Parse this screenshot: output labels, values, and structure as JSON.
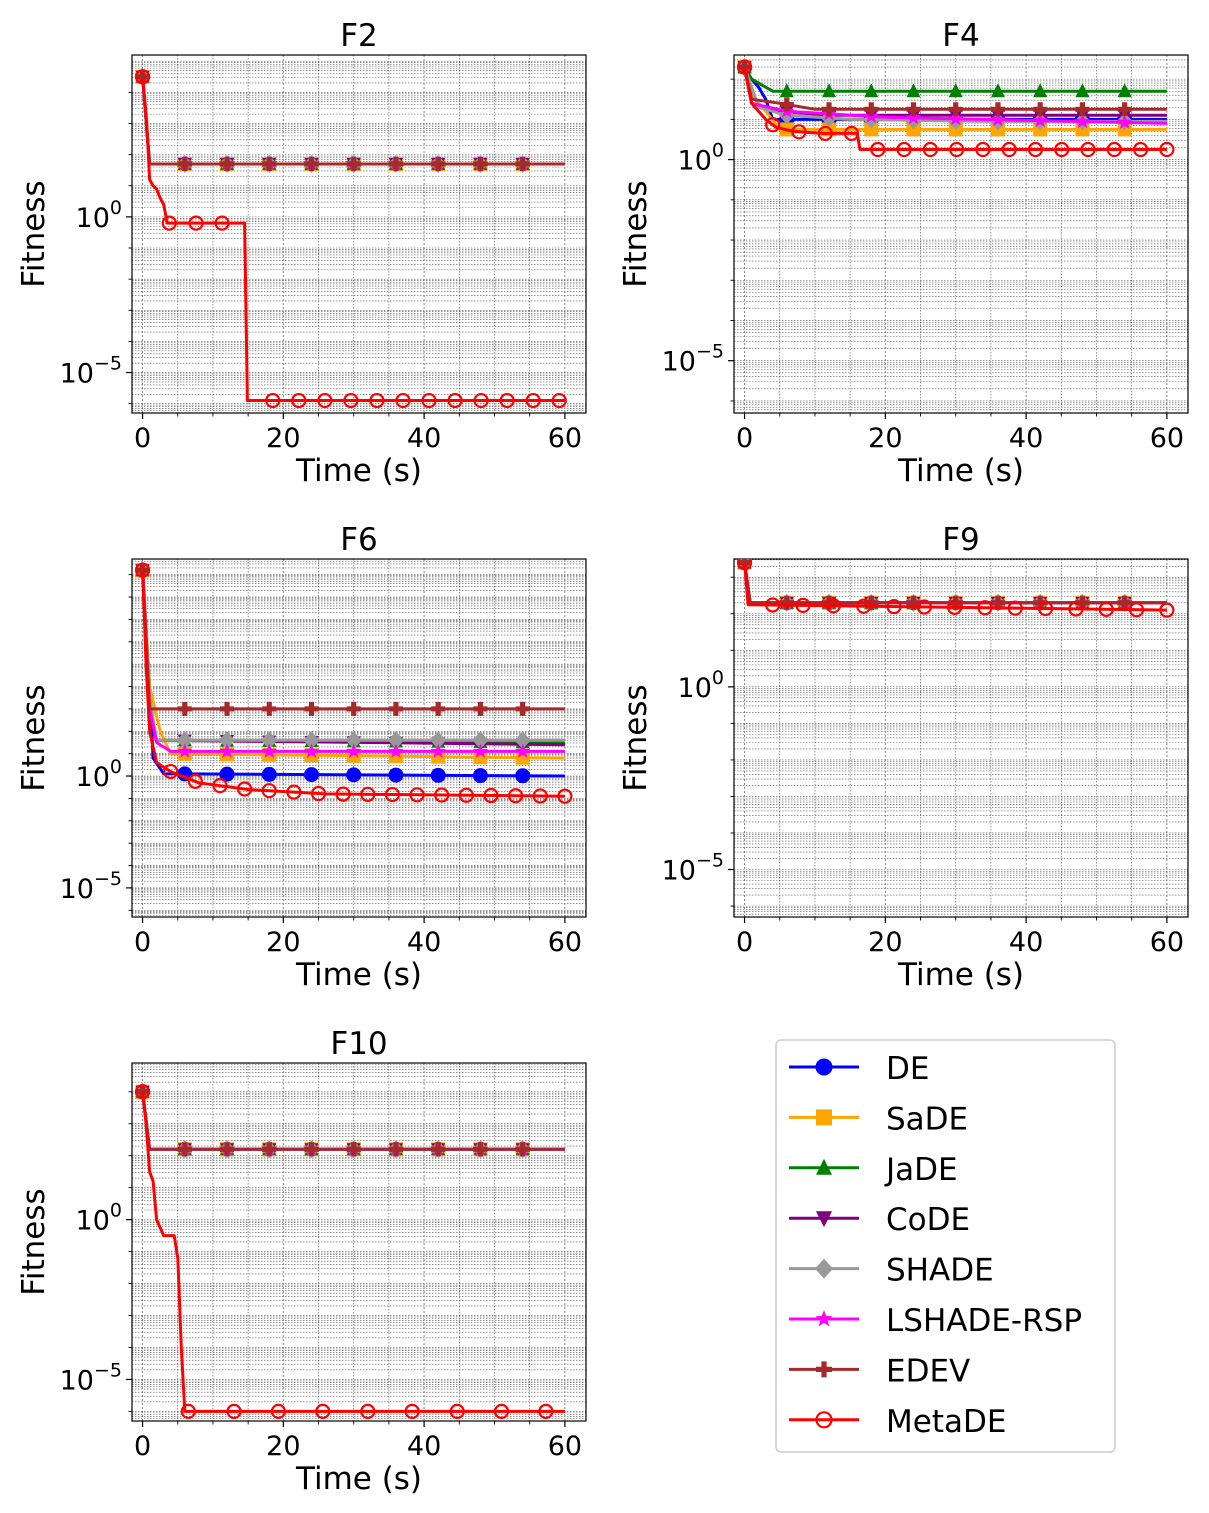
{
  "chart_data": [
    {
      "type": "line",
      "title": "F2",
      "xlabel": "Time (s)",
      "ylabel": "Fitness",
      "xlim": [
        -1.5,
        63
      ],
      "ylim_log10": [
        -6.3,
        5.2
      ],
      "xticks": [
        "0",
        "20",
        "40",
        "60"
      ],
      "yticks": [
        {
          "base": "10",
          "exp": "0",
          "v": 0
        },
        {
          "base": "10",
          "exp": "−5",
          "v": -5
        }
      ],
      "grid": true,
      "series": [
        {
          "name": "DE",
          "x": [
            0,
            1,
            60
          ],
          "log10y": [
            4.5,
            1.7,
            1.7
          ]
        },
        {
          "name": "SaDE",
          "x": [
            0,
            1,
            60
          ],
          "log10y": [
            4.5,
            1.7,
            1.7
          ]
        },
        {
          "name": "JaDE",
          "x": [
            0,
            1,
            60
          ],
          "log10y": [
            4.5,
            1.7,
            1.7
          ]
        },
        {
          "name": "CoDE",
          "x": [
            0,
            1,
            60
          ],
          "log10y": [
            4.5,
            1.7,
            1.7
          ]
        },
        {
          "name": "SHADE",
          "x": [
            0,
            1,
            60
          ],
          "log10y": [
            4.5,
            1.7,
            1.7
          ]
        },
        {
          "name": "LSHADE-RSP",
          "x": [
            0,
            1,
            60
          ],
          "log10y": [
            4.5,
            1.7,
            1.7
          ]
        },
        {
          "name": "EDEV",
          "x": [
            0,
            1,
            60
          ],
          "log10y": [
            4.5,
            1.7,
            1.7
          ]
        },
        {
          "name": "MetaDE",
          "x": [
            0,
            0.3,
            0.6,
            1.0,
            1.5,
            2.0,
            2.5,
            3.0,
            3.5,
            14.5,
            14.9,
            60
          ],
          "log10y": [
            4.5,
            3.8,
            3.0,
            1.2,
            1.0,
            0.9,
            0.6,
            0.4,
            -0.2,
            -0.2,
            -5.9,
            -5.9
          ]
        }
      ]
    },
    {
      "type": "line",
      "title": "F4",
      "xlabel": "Time (s)",
      "ylabel": "Fitness",
      "xlim": [
        -1.5,
        63
      ],
      "ylim_log10": [
        -6.3,
        2.6
      ],
      "xticks": [
        "0",
        "20",
        "40",
        "60"
      ],
      "yticks": [
        {
          "base": "10",
          "exp": "0",
          "v": 0
        },
        {
          "base": "10",
          "exp": "−5",
          "v": -5
        }
      ],
      "grid": true,
      "series": [
        {
          "name": "DE",
          "x": [
            0,
            1,
            2,
            3,
            4,
            60
          ],
          "log10y": [
            2.3,
            2.0,
            1.8,
            1.5,
            1.0,
            1.0
          ]
        },
        {
          "name": "SaDE",
          "x": [
            0,
            1,
            3,
            5,
            60
          ],
          "log10y": [
            2.3,
            1.6,
            1.2,
            0.75,
            0.75
          ]
        },
        {
          "name": "JaDE",
          "x": [
            0,
            1,
            4,
            60
          ],
          "log10y": [
            2.3,
            2.0,
            1.7,
            1.7
          ]
        },
        {
          "name": "CoDE",
          "x": [
            0,
            1,
            5,
            12,
            60
          ],
          "log10y": [
            2.3,
            1.4,
            1.2,
            1.1,
            1.1
          ]
        },
        {
          "name": "SHADE",
          "x": [
            0,
            2,
            6,
            15,
            35,
            60
          ],
          "log10y": [
            2.3,
            1.3,
            1.1,
            1.0,
            0.95,
            0.95
          ]
        },
        {
          "name": "LSHADE-RSP",
          "x": [
            0,
            1,
            6,
            20,
            60
          ],
          "log10y": [
            2.3,
            1.4,
            1.2,
            1.05,
            0.9
          ]
        },
        {
          "name": "EDEV",
          "x": [
            0,
            1,
            5,
            10,
            60
          ],
          "log10y": [
            2.3,
            1.5,
            1.4,
            1.25,
            1.25
          ]
        },
        {
          "name": "MetaDE",
          "x": [
            0,
            0.3,
            1.0,
            3.0,
            4.5,
            7.0,
            11.0,
            16.0,
            16.4,
            60
          ],
          "log10y": [
            2.3,
            2.0,
            1.4,
            1.0,
            0.8,
            0.7,
            0.65,
            0.65,
            0.25,
            0.25
          ]
        }
      ]
    },
    {
      "type": "line",
      "title": "F6",
      "xlabel": "Time (s)",
      "ylabel": "Fitness",
      "xlim": [
        -1.5,
        63
      ],
      "ylim_log10": [
        -6.3,
        9.7
      ],
      "xticks": [
        "0",
        "20",
        "40",
        "60"
      ],
      "yticks": [
        {
          "base": "10",
          "exp": "0",
          "v": 0
        },
        {
          "base": "10",
          "exp": "−5",
          "v": -5
        }
      ],
      "grid": true,
      "series": [
        {
          "name": "DE",
          "x": [
            0,
            1.0,
            1.5,
            3.0,
            60
          ],
          "log10y": [
            9.2,
            4.0,
            0.8,
            0.1,
            0.0
          ]
        },
        {
          "name": "SaDE",
          "x": [
            0,
            1.0,
            2.5,
            4.0,
            60
          ],
          "log10y": [
            9.2,
            4.0,
            2.0,
            1.0,
            0.8
          ]
        },
        {
          "name": "JaDE",
          "x": [
            0,
            1.0,
            2.0,
            60
          ],
          "log10y": [
            9.2,
            3.0,
            1.6,
            1.5
          ]
        },
        {
          "name": "CoDE",
          "x": [
            0,
            1.0,
            2.0,
            60
          ],
          "log10y": [
            9.2,
            3.0,
            1.6,
            1.4
          ]
        },
        {
          "name": "SHADE",
          "x": [
            0,
            1.0,
            2.0,
            60
          ],
          "log10y": [
            9.2,
            3.5,
            1.6,
            1.6
          ]
        },
        {
          "name": "LSHADE-RSP",
          "x": [
            0,
            1.0,
            2.0,
            4.0,
            60
          ],
          "log10y": [
            9.2,
            3.0,
            1.5,
            1.1,
            1.1
          ]
        },
        {
          "name": "EDEV",
          "x": [
            0,
            1.0,
            60
          ],
          "log10y": [
            9.2,
            3.0,
            3.0
          ]
        },
        {
          "name": "MetaDE",
          "x": [
            0,
            0.5,
            1.0,
            2.0,
            4.0,
            8.0,
            15.0,
            26.0,
            60
          ],
          "log10y": [
            9.2,
            5.0,
            2.0,
            0.6,
            0.2,
            -0.3,
            -0.6,
            -0.8,
            -0.9
          ]
        }
      ]
    },
    {
      "type": "line",
      "title": "F9",
      "xlabel": "Time (s)",
      "ylabel": "Fitness",
      "xlim": [
        -1.5,
        63
      ],
      "ylim_log10": [
        -6.3,
        3.5
      ],
      "xticks": [
        "0",
        "20",
        "40",
        "60"
      ],
      "yticks": [
        {
          "base": "10",
          "exp": "0",
          "v": 0
        },
        {
          "base": "10",
          "exp": "−5",
          "v": -5
        }
      ],
      "grid": true,
      "series": [
        {
          "name": "DE",
          "x": [
            0,
            0.8,
            60
          ],
          "log10y": [
            3.4,
            2.3,
            2.3
          ]
        },
        {
          "name": "SaDE",
          "x": [
            0,
            0.8,
            60
          ],
          "log10y": [
            3.4,
            2.3,
            2.3
          ]
        },
        {
          "name": "JaDE",
          "x": [
            0,
            0.8,
            60
          ],
          "log10y": [
            3.4,
            2.3,
            2.3
          ]
        },
        {
          "name": "CoDE",
          "x": [
            0,
            0.8,
            60
          ],
          "log10y": [
            3.4,
            2.3,
            2.3
          ]
        },
        {
          "name": "SHADE",
          "x": [
            0,
            0.8,
            60
          ],
          "log10y": [
            3.4,
            2.3,
            2.3
          ]
        },
        {
          "name": "LSHADE-RSP",
          "x": [
            0,
            0.8,
            60
          ],
          "log10y": [
            3.4,
            2.3,
            2.3
          ]
        },
        {
          "name": "EDEV",
          "x": [
            0,
            0.8,
            60
          ],
          "log10y": [
            3.4,
            2.3,
            2.3
          ]
        },
        {
          "name": "MetaDE",
          "x": [
            0,
            0.5,
            60
          ],
          "log10y": [
            3.4,
            2.25,
            2.1
          ]
        }
      ]
    },
    {
      "type": "line",
      "title": "F10",
      "xlabel": "Time (s)",
      "ylabel": "Fitness",
      "xlim": [
        -1.5,
        63
      ],
      "ylim_log10": [
        -6.3,
        4.9
      ],
      "xticks": [
        "0",
        "20",
        "40",
        "60"
      ],
      "yticks": [
        {
          "base": "10",
          "exp": "0",
          "v": 0
        },
        {
          "base": "10",
          "exp": "−5",
          "v": -5
        }
      ],
      "grid": true,
      "series": [
        {
          "name": "DE",
          "x": [
            0,
            1,
            60
          ],
          "log10y": [
            4.0,
            2.2,
            2.2
          ]
        },
        {
          "name": "SaDE",
          "x": [
            0,
            1,
            60
          ],
          "log10y": [
            4.0,
            2.2,
            2.2
          ]
        },
        {
          "name": "JaDE",
          "x": [
            0,
            1,
            60
          ],
          "log10y": [
            4.0,
            2.2,
            2.2
          ]
        },
        {
          "name": "CoDE",
          "x": [
            0,
            1,
            60
          ],
          "log10y": [
            4.0,
            2.2,
            2.2
          ]
        },
        {
          "name": "SHADE",
          "x": [
            0,
            1,
            60
          ],
          "log10y": [
            4.0,
            2.2,
            2.2
          ]
        },
        {
          "name": "LSHADE-RSP",
          "x": [
            0,
            1,
            60
          ],
          "log10y": [
            4.0,
            2.2,
            2.2
          ]
        },
        {
          "name": "EDEV",
          "x": [
            0,
            1,
            60
          ],
          "log10y": [
            4.0,
            2.2,
            2.2
          ]
        },
        {
          "name": "MetaDE",
          "x": [
            0,
            0.5,
            1.0,
            1.5,
            2.0,
            3.0,
            4.5,
            5.0,
            5.5,
            6.0,
            60
          ],
          "log10y": [
            4.0,
            3.0,
            1.5,
            1.2,
            0.0,
            -0.5,
            -0.5,
            -1.2,
            -4.0,
            -6.0,
            -6.0
          ]
        }
      ]
    }
  ],
  "legend": {
    "placement": "lower-right",
    "entries": [
      {
        "name": "DE",
        "color": "#0000ff",
        "marker": "circle"
      },
      {
        "name": "SaDE",
        "color": "#ffa500",
        "marker": "square"
      },
      {
        "name": "JaDE",
        "color": "#008000",
        "marker": "triangle-up"
      },
      {
        "name": "CoDE",
        "color": "#800080",
        "marker": "triangle-down"
      },
      {
        "name": "SHADE",
        "color": "#999999",
        "marker": "diamond"
      },
      {
        "name": "LSHADE-RSP",
        "color": "#ff00ff",
        "marker": "star"
      },
      {
        "name": "EDEV",
        "color": "#a52a2a",
        "marker": "plus"
      },
      {
        "name": "MetaDE",
        "color": "#ff0000",
        "marker": "open-circle"
      }
    ]
  }
}
